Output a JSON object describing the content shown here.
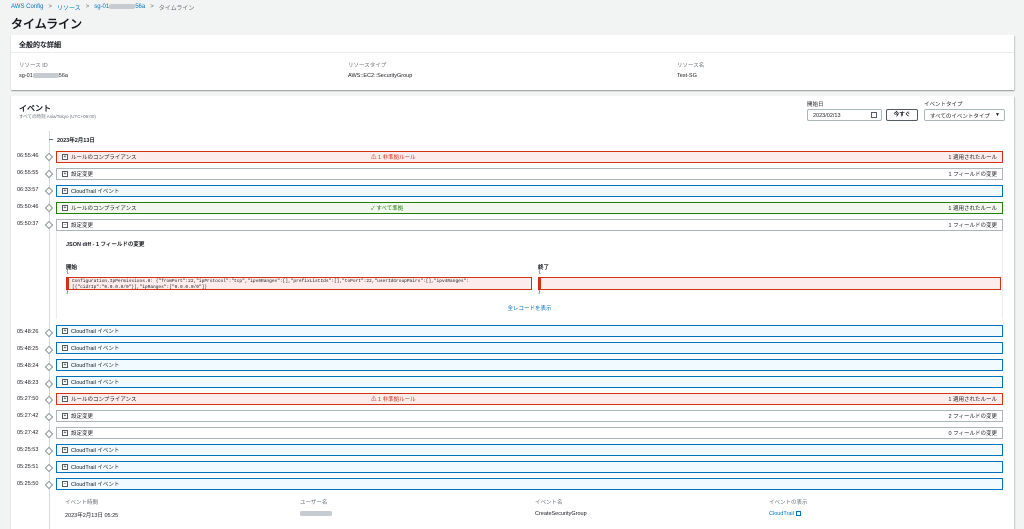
{
  "breadcrumb": {
    "root": "AWS Config",
    "resources": "リソース",
    "resource_id_prefix": "sg-01",
    "resource_id_suffix": "56a",
    "current": "タイムライン"
  },
  "page_title": "タイムライン",
  "general": {
    "header": "全般的な詳細",
    "resource_id_label": "リソース ID",
    "resource_id_prefix": "sg-01",
    "resource_id_suffix": "56a",
    "resource_type_label": "リソースタイプ",
    "resource_type_value": "AWS::EC2::SecurityGroup",
    "resource_name_label": "リソース名",
    "resource_name_value": "Test-SG"
  },
  "events": {
    "title": "イベント",
    "subtitle": "すべての時刻 Asia/Tokyo (UTC+09:00)",
    "start_date_label": "開始日",
    "start_date_value": "2023/02/13",
    "now_button": "今すぐ",
    "event_type_label": "イベントタイプ",
    "event_type_value": "すべてのイベントタイプ",
    "date_heading": "2023年2月13日"
  },
  "rows": [
    {
      "time": "06:55:46",
      "label": "ルールのコンプライアンス",
      "mid": "1 非準拠ルール",
      "right": "1 適用されたルール"
    },
    {
      "time": "06:55:55",
      "label": "設定変更",
      "mid": "",
      "right": "1 フィールドの変更"
    },
    {
      "time": "06:33:57",
      "label": "CloudTrail イベント",
      "mid": "",
      "right": ""
    },
    {
      "time": "05:50:46",
      "label": "ルールのコンプライアンス",
      "mid": "すべて準拠",
      "right": "1 適用されたルール"
    },
    {
      "time": "05:50:37",
      "label": "設定変更",
      "mid": "",
      "right": "1 フィールドの変更"
    },
    {
      "time": "05:48:26",
      "label": "CloudTrail イベント",
      "mid": "",
      "right": ""
    },
    {
      "time": "05:48:25",
      "label": "CloudTrail イベント",
      "mid": "",
      "right": ""
    },
    {
      "time": "05:48:24",
      "label": "CloudTrail イベント",
      "mid": "",
      "right": ""
    },
    {
      "time": "05:48:23",
      "label": "CloudTrail イベント",
      "mid": "",
      "right": ""
    },
    {
      "time": "05:27:50",
      "label": "ルールのコンプライアンス",
      "mid": "1 非準拠ルール",
      "right": "1 適用されたルール"
    },
    {
      "time": "05:27:42",
      "label": "設定変更",
      "mid": "",
      "right": "2 フィールドの変更"
    },
    {
      "time": "05:27:42",
      "label": "設定変更",
      "mid": "",
      "right": "0 フィールドの変更"
    },
    {
      "time": "05:25:53",
      "label": "CloudTrail イベント",
      "mid": "",
      "right": ""
    },
    {
      "time": "05:25:51",
      "label": "CloudTrail イベント",
      "mid": "",
      "right": ""
    },
    {
      "time": "05:25:50",
      "label": "CloudTrail イベント",
      "mid": "",
      "right": ""
    }
  ],
  "diff": {
    "title": "JSON diff - 1 フィールドの変更",
    "before_label": "開始",
    "after_label": "終了",
    "open_brace": "{",
    "close_brace": "}",
    "before_line1": "Configuration.IpPermissions.0: {\"fromPort\":22,\"ipProtocol\":\"tcp\",\"ipv6Ranges\":[],\"prefixListIds\":[],\"toPort\":22,\"userIdGroupPairs\":[],\"ipv4Ranges\":",
    "before_line2": "[{\"cidrIp\":\"0.0.0.0/0\"}],\"ipRanges\":[\"0.0.0.0/0\"]}",
    "show_all": "全レコードを表示"
  },
  "event_detail": {
    "time_label": "イベント時間",
    "time_value": "2023年2月13日 05:25",
    "user_label": "ユーザー名",
    "name_label": "イベント名",
    "name_value": "CreateSecurityGroup",
    "view_label": "イベントの表示",
    "view_value": "CloudTrail"
  },
  "colors": {
    "link": "#0073bb",
    "error": "#d13212",
    "success": "#1d8102",
    "info": "#0073bb"
  }
}
